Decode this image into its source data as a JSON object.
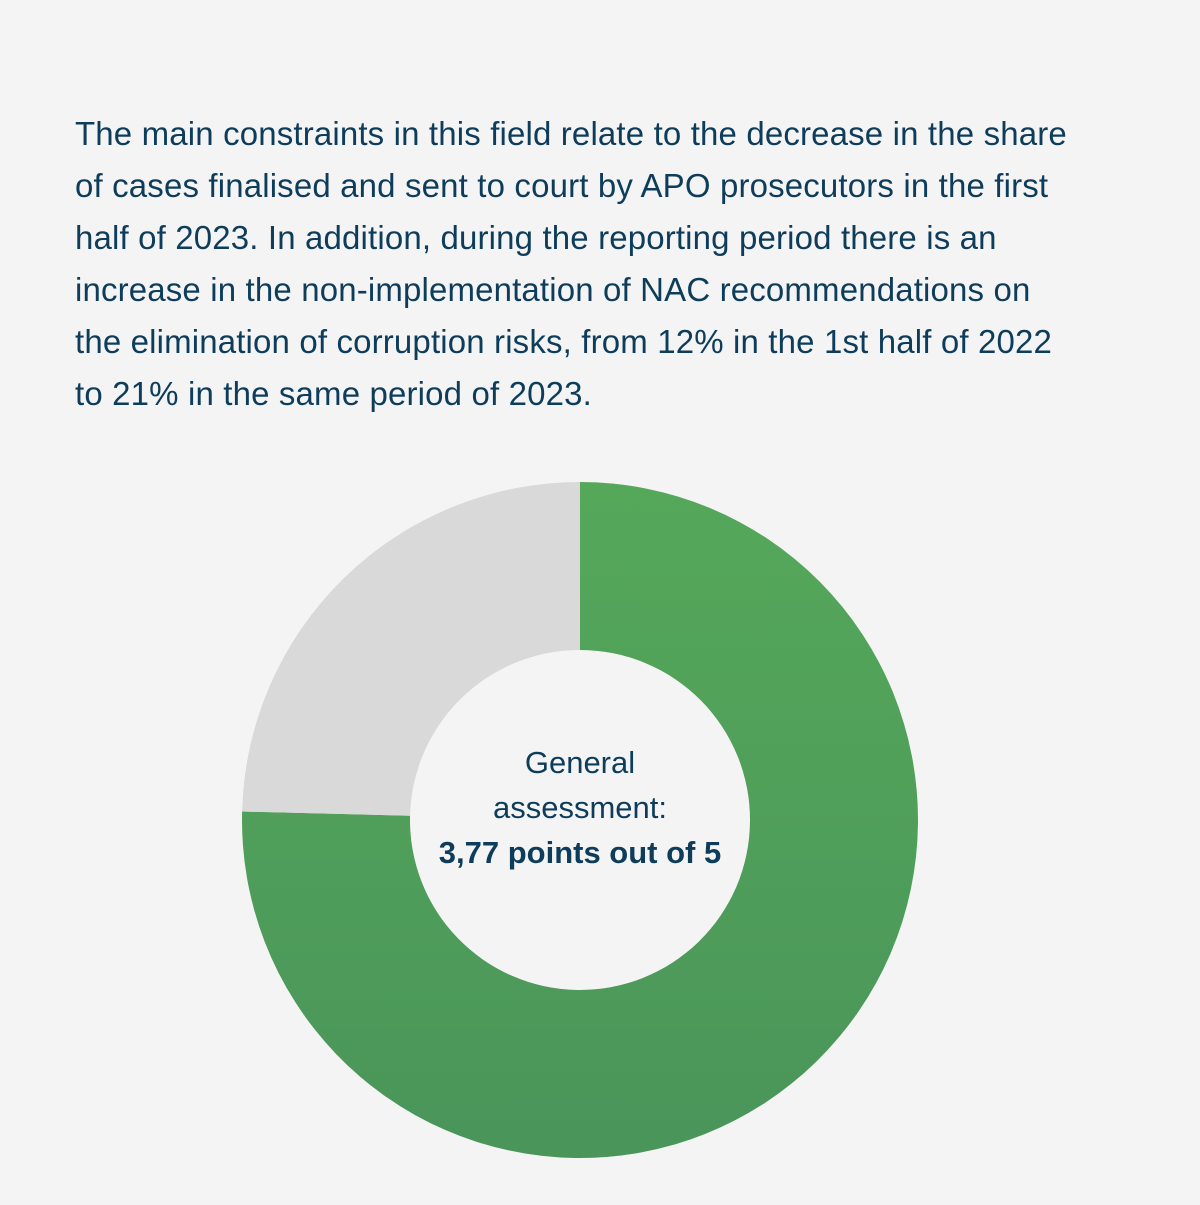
{
  "intro_text": "The main constraints in this field relate to the decrease in the share of cases finalised and sent to court by APO prosecutors in the first half of 2023. In addition, during the reporting period there is an increase in the non-implementation of NAC recommendations on the elimination of corruption risks, from 12% in the 1st half of 2022 to 21% in the same period of 2023.",
  "chart_data": {
    "type": "pie",
    "variant": "donut",
    "total": 5,
    "slices": [
      {
        "value": 3.77,
        "color": "#55a85a",
        "color_dark": "#4a955a"
      },
      {
        "value": 1.23,
        "color": "#d9d9d9"
      }
    ],
    "center_label": {
      "line1": "General",
      "line2": "assessment:",
      "line3": "3,77 points out of 5"
    }
  }
}
